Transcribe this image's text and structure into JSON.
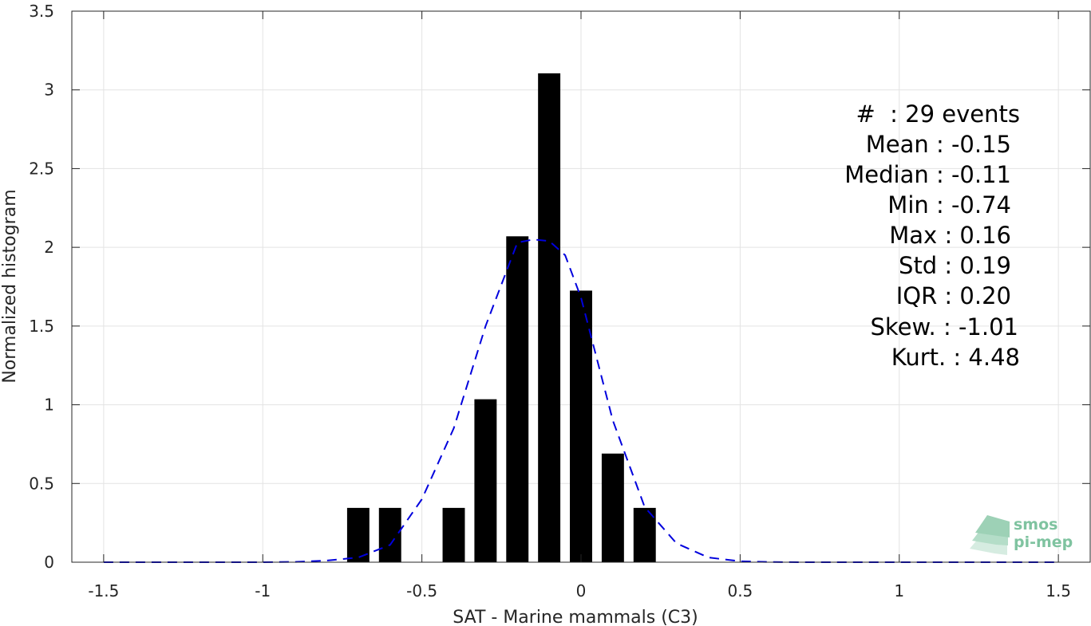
{
  "chart_data": {
    "type": "bar",
    "xlabel": "SAT - Marine mammals (C3)",
    "ylabel": "Normalized histogram",
    "xlim": [
      -1.6,
      1.6
    ],
    "ylim": [
      0,
      3.5
    ],
    "xticks": [
      -1.5,
      -1,
      -0.5,
      0,
      0.5,
      1,
      1.5
    ],
    "xtick_labels": [
      "-1.5",
      "-1",
      "-0.5",
      "0",
      "0.5",
      "1",
      "1.5"
    ],
    "yticks": [
      0,
      0.5,
      1,
      1.5,
      2,
      2.5,
      3,
      3.5
    ],
    "ytick_labels": [
      "0",
      "0.5",
      "1",
      "1.5",
      "2",
      "2.5",
      "3",
      "3.5"
    ],
    "grid": true,
    "bin_width": 0.1,
    "bars": {
      "x": [
        -0.7,
        -0.6,
        -0.4,
        -0.3,
        -0.2,
        -0.1,
        0.0,
        0.1,
        0.2
      ],
      "values": [
        0.345,
        0.345,
        0.345,
        1.035,
        2.07,
        3.105,
        1.725,
        0.69,
        0.345
      ],
      "color": "#000000"
    },
    "series": [
      {
        "type": "line",
        "style": "dashed",
        "color": "#0000dd",
        "x": [
          -1.5,
          -1.4,
          -1.3,
          -1.2,
          -1.1,
          -1.0,
          -0.9,
          -0.8,
          -0.7,
          -0.6,
          -0.5,
          -0.4,
          -0.3,
          -0.2,
          -0.15,
          -0.1,
          -0.05,
          0.0,
          0.1,
          0.2,
          0.3,
          0.4,
          0.5,
          0.6,
          0.7,
          0.8,
          0.9,
          1.0,
          1.1,
          1.2,
          1.3,
          1.4,
          1.5
        ],
        "values": [
          0,
          0,
          0,
          0,
          0,
          0,
          0.002,
          0.01,
          0.03,
          0.11,
          0.4,
          0.85,
          1.5,
          2.03,
          2.05,
          2.04,
          1.95,
          1.68,
          0.9,
          0.35,
          0.12,
          0.03,
          0.006,
          0.001,
          0,
          0,
          0,
          0,
          0,
          0,
          0,
          0,
          0
        ]
      }
    ],
    "annotations": [
      "#  : 29 events",
      "Mean : -0.15",
      "Median : -0.11",
      "Min : -0.74",
      "Max : 0.16",
      "Std : 0.19",
      "IQR : 0.20",
      "Skew. : -1.01",
      "Kurt. : 4.48"
    ],
    "annotation_placement": "top-right"
  },
  "logo": {
    "line1": "smos",
    "line2": "pi-mep",
    "color": "#7fc3a0"
  }
}
